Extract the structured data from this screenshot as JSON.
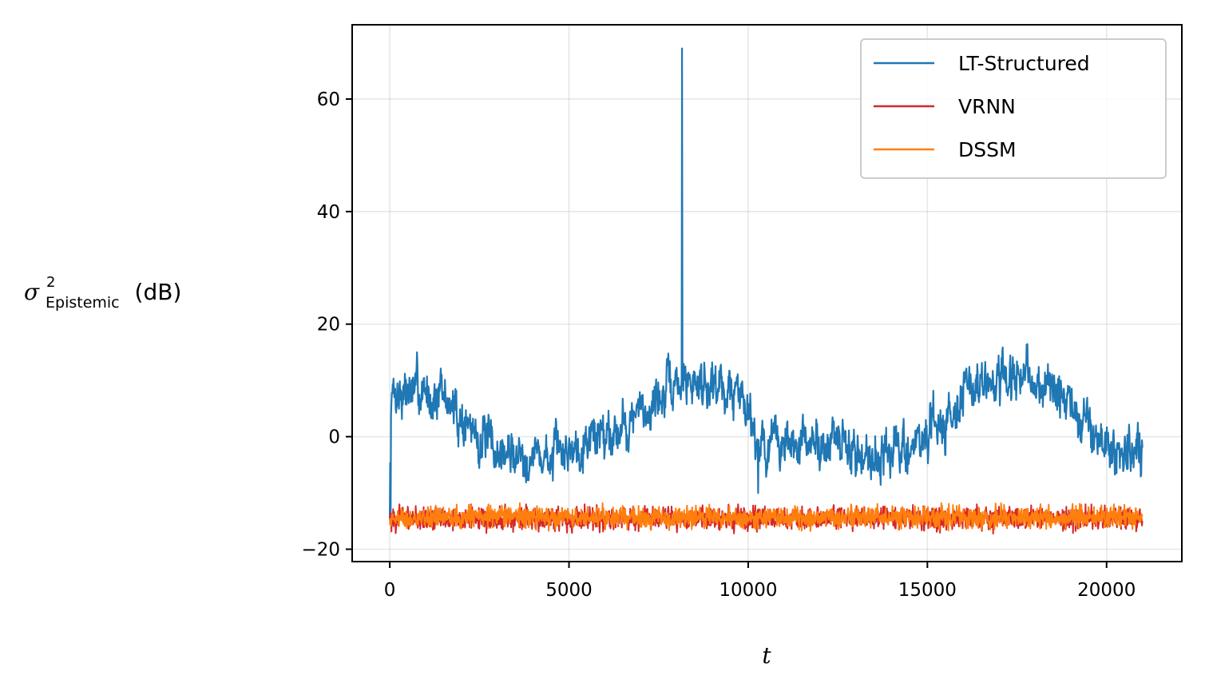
{
  "chart_data": {
    "type": "line",
    "xlabel": "t",
    "ylabel": {
      "symbol": "σ",
      "superscript": "2",
      "subscript": "Epistemic",
      "unit": "(dB)"
    },
    "xlim": [
      -1050,
      22100
    ],
    "ylim": [
      -22.2,
      73.2
    ],
    "xticks": [
      0,
      5000,
      10000,
      15000,
      20000
    ],
    "xtick_labels": [
      "0",
      "5000",
      "10000",
      "15000",
      "20000"
    ],
    "yticks": [
      -20,
      0,
      20,
      40,
      60
    ],
    "ytick_labels": [
      "−20",
      "0",
      "20",
      "40",
      "60"
    ],
    "grid": true,
    "legend_position": "top-right",
    "x_range": [
      0,
      21000
    ],
    "series": [
      {
        "name": "LT-Structured",
        "color": "#1f77b4",
        "anchors_x": [
          0,
          30,
          300,
          800,
          1500,
          2000,
          2500,
          3000,
          3500,
          4000,
          4500,
          5000,
          5500,
          6000,
          6500,
          7000,
          7500,
          8000,
          8500,
          9000,
          9500,
          10000,
          10200,
          10500,
          11000,
          11500,
          12000,
          12500,
          13000,
          13500,
          14000,
          14500,
          15000,
          15500,
          16000,
          16500,
          17000,
          17500,
          18000,
          18500,
          19000,
          19500,
          20000,
          20500,
          21000
        ],
        "anchors_y": [
          -15,
          8,
          8,
          8,
          7,
          3,
          0,
          -3,
          -3,
          -3,
          -4,
          -2,
          0,
          1,
          2,
          4,
          7,
          9,
          10,
          10,
          8,
          7,
          0,
          -2,
          -1,
          -2,
          -1,
          -1,
          -3,
          -3,
          -3,
          -2,
          0,
          3,
          8,
          9,
          9,
          10,
          10,
          8,
          5,
          2,
          -2,
          -3,
          -2
        ],
        "noise_amplitude": 4.0,
        "spikes": [
          {
            "x": 8150,
            "y": 69
          },
          {
            "x": 10280,
            "y": -10
          },
          {
            "x": 20,
            "y": -14
          }
        ]
      },
      {
        "name": "VRNN",
        "color": "#d62728",
        "mean": -14.5,
        "noise_amplitude": 1.3,
        "min": -17.3,
        "max": -12.0
      },
      {
        "name": "DSSM",
        "color": "#ff7f0e",
        "mean": -14.3,
        "noise_amplitude": 1.2,
        "min": -17.5,
        "max": -11.8
      }
    ]
  }
}
